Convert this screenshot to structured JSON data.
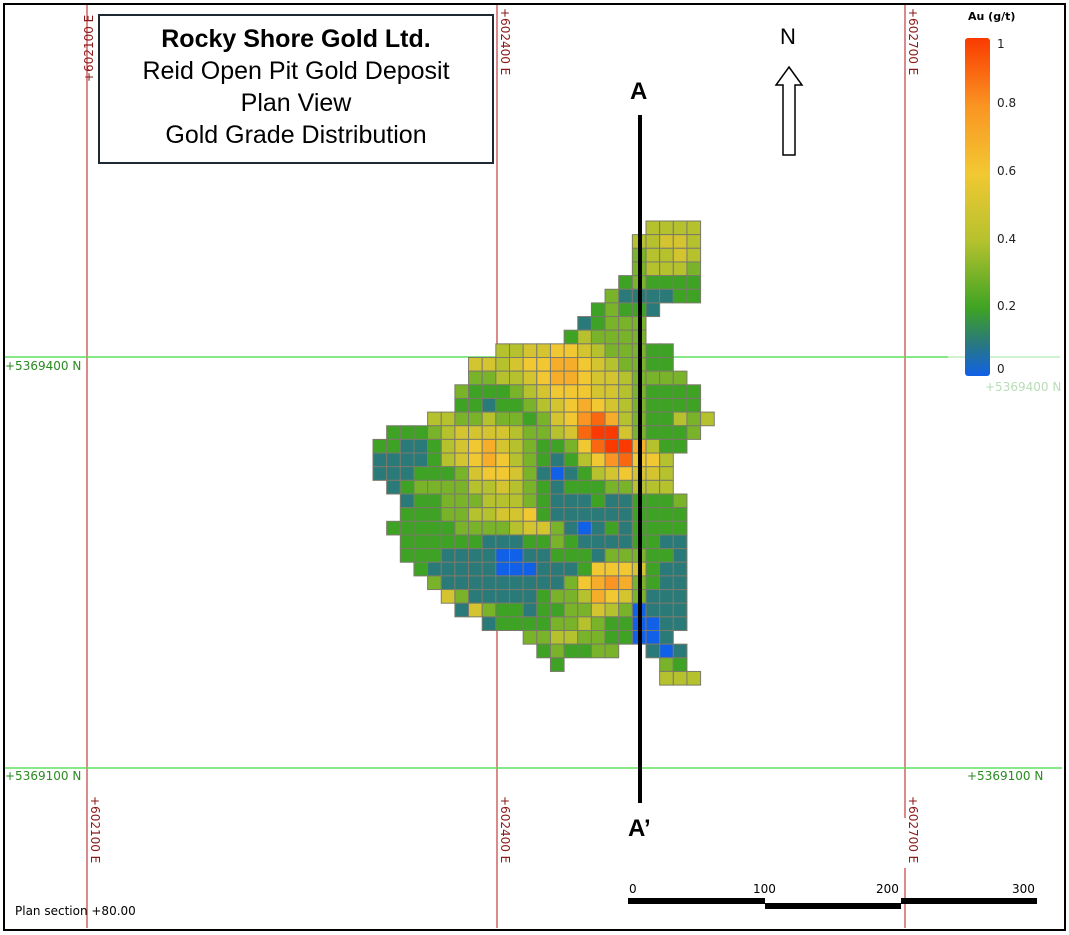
{
  "title_box": {
    "company": "Rocky Shore Gold Ltd.",
    "deposit": "Reid Open Pit Gold Deposit",
    "view": "Plan View",
    "subject": "Gold Grade Distribution"
  },
  "grid_labels": {
    "easting": [
      "+602100 E",
      "+602400 E",
      "+602700 E"
    ],
    "northing": [
      "+5369400 N",
      "+5369100 N"
    ]
  },
  "section_line": {
    "start": "A",
    "end": "A’"
  },
  "north_arrow": {
    "label": "N",
    "icon": "north-arrow-icon"
  },
  "colorbar": {
    "title": "Au (g/t)",
    "ticks": [
      "1",
      "0.8",
      "0.6",
      "0.4",
      "0.2",
      "0"
    ],
    "stops": [
      {
        "v": 0.0,
        "c": "#1060e8"
      },
      {
        "v": 0.1,
        "c": "#2a7a7a"
      },
      {
        "v": 0.2,
        "c": "#3ea324"
      },
      {
        "v": 0.4,
        "c": "#b5c22e"
      },
      {
        "v": 0.6,
        "c": "#f2c832"
      },
      {
        "v": 0.8,
        "c": "#fa9422"
      },
      {
        "v": 1.0,
        "c": "#fa3a00"
      }
    ]
  },
  "scale_bar": {
    "labels": [
      "0",
      "100",
      "200",
      "300"
    ]
  },
  "plan_section": "Plan section +80.00",
  "block_model": {
    "grade_unit": "Au g/t, code digit x0.1 (a = 1.0)",
    "rows": [
      "....................4444.",
      "...................44554.",
      "...................34454.",
      "...................34443.",
      "..................232222.",
      ".................3111122.",
      "................23221....",
      "...............12333.....",
      "..............243333.....",
      ".........4455665433322...",
      ".......554566776543322...",
      ".......3344567765543333..",
      "......322234566655432222.",
      "......221223456765432222.",
      "....443343323568974322434",
      ".222345555433459aa532223.",
      "22112456754322369aa7422..",
      "1111245676432124689664...",
      "1112223566531012456554...",
      ".123333445432122233444...",
      "..122333444321112112223..",
      "..222334455621111112222..",
      ".2222233334553101212222..",
      "..222222111223211112211..",
      "..222111100112221333221..",
      "...21111100011126665211..",
      "....3111111111367873211..",
      ".....531111123347653111..",
      "......15322122335430111..",
      "........122223343220011..",
      "...........33443322001...",
      "............232233..101..",
      ".............2.......32..",
      ".....................444."
    ]
  }
}
